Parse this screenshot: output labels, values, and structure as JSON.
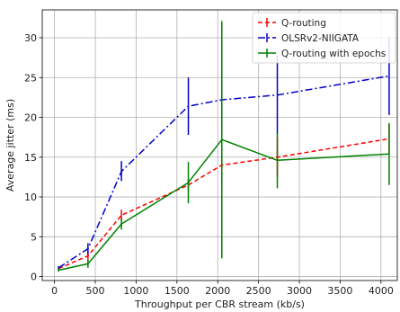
{
  "chart_data": {
    "type": "line",
    "xlabel": "Throughput per CBR stream (kb/s)",
    "ylabel": "Average jitter (ms)",
    "xlim": [
      -150,
      4200
    ],
    "ylim": [
      -0.5,
      33.5
    ],
    "xticks": [
      0,
      500,
      1000,
      1500,
      2000,
      2500,
      3000,
      3500,
      4000
    ],
    "yticks": [
      0,
      5,
      10,
      15,
      20,
      25,
      30
    ],
    "grid": true,
    "legend_position": "top-right",
    "series": [
      {
        "name": "Q-routing",
        "color": "#ff0000",
        "line_style": "dashed",
        "points": [
          {
            "x": 50,
            "y": 1.0,
            "err_low": 0.8,
            "err_high": 1.2
          },
          {
            "x": 410,
            "y": 2.6,
            "err_low": 2.0,
            "err_high": 3.2
          },
          {
            "x": 820,
            "y": 7.7,
            "err_low": 7.0,
            "err_high": 8.4
          },
          {
            "x": 1640,
            "y": 11.5,
            "err_low": 10.7,
            "err_high": 12.3
          },
          {
            "x": 2050,
            "y": 14.0,
            "err_low": 11.5,
            "err_high": 16.5
          },
          {
            "x": 2730,
            "y": 15.0,
            "err_low": 12.5,
            "err_high": 17.5
          },
          {
            "x": 4100,
            "y": 17.3,
            "err_low": 15.5,
            "err_high": 19.1
          }
        ]
      },
      {
        "name": "OLSRv2-NIIGATA",
        "color": "#0000cc",
        "line_style": "dashdot",
        "points": [
          {
            "x": 50,
            "y": 1.1,
            "err_low": 0.9,
            "err_high": 1.3
          },
          {
            "x": 410,
            "y": 3.5,
            "err_low": 2.8,
            "err_high": 4.2
          },
          {
            "x": 820,
            "y": 13.2,
            "err_low": 12.0,
            "err_high": 14.5
          },
          {
            "x": 1640,
            "y": 21.4,
            "err_low": 17.8,
            "err_high": 25.0
          },
          {
            "x": 2050,
            "y": 22.2,
            "err_low": 18.3,
            "err_high": 26.1
          },
          {
            "x": 2730,
            "y": 22.8,
            "err_low": 17.8,
            "err_high": 27.8
          },
          {
            "x": 4100,
            "y": 25.2,
            "err_low": 20.3,
            "err_high": 30.1
          }
        ]
      },
      {
        "name": "Q-routing with epochs",
        "color": "#008000",
        "line_style": "solid",
        "points": [
          {
            "x": 50,
            "y": 0.8,
            "err_low": 0.6,
            "err_high": 1.0
          },
          {
            "x": 410,
            "y": 1.6,
            "err_low": 1.1,
            "err_high": 2.1
          },
          {
            "x": 820,
            "y": 6.6,
            "err_low": 5.9,
            "err_high": 7.3
          },
          {
            "x": 1640,
            "y": 11.8,
            "err_low": 9.2,
            "err_high": 14.4
          },
          {
            "x": 2050,
            "y": 17.2,
            "err_low": 2.3,
            "err_high": 32.1
          },
          {
            "x": 2730,
            "y": 14.6,
            "err_low": 11.1,
            "err_high": 18.1
          },
          {
            "x": 4100,
            "y": 15.4,
            "err_low": 11.5,
            "err_high": 19.3
          }
        ]
      }
    ]
  }
}
